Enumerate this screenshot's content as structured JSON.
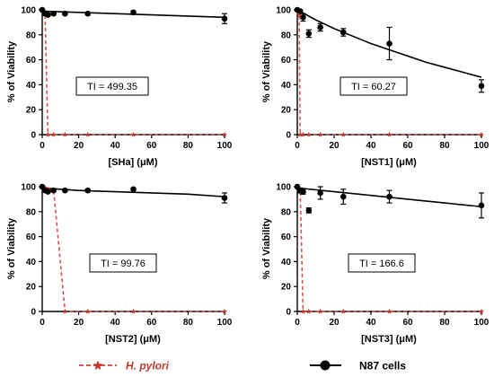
{
  "chart_data": [
    {
      "type": "line",
      "xlabel": "[SHa] (μM)",
      "ylabel": "% of Viability",
      "annotation": "TI = 499.35",
      "xlim": [
        0,
        100
      ],
      "ylim": [
        0,
        100
      ],
      "xticks": [
        0,
        20,
        40,
        60,
        80,
        100
      ],
      "yticks": [
        0,
        20,
        40,
        60,
        80,
        100
      ],
      "series": [
        {
          "name": "N87 cells",
          "points": [
            {
              "x": 0,
              "y": 100,
              "err": 0
            },
            {
              "x": 1.56,
              "y": 97,
              "err": 1
            },
            {
              "x": 3.13,
              "y": 96,
              "err": 1
            },
            {
              "x": 6.25,
              "y": 97,
              "err": 1
            },
            {
              "x": 12.5,
              "y": 97,
              "err": 1
            },
            {
              "x": 25,
              "y": 97,
              "err": 1
            },
            {
              "x": 50,
              "y": 98,
              "err": 1
            },
            {
              "x": 100,
              "y": 93,
              "err": 4
            }
          ],
          "fit": [
            [
              0,
              99
            ],
            [
              20,
              98
            ],
            [
              40,
              97
            ],
            [
              60,
              96
            ],
            [
              80,
              95
            ],
            [
              100,
              94
            ]
          ]
        },
        {
          "name": "H. pylori",
          "points": [
            {
              "x": 0,
              "y": 100
            },
            {
              "x": 0.5,
              "y": 99
            },
            {
              "x": 1,
              "y": 98
            },
            {
              "x": 1.56,
              "y": 97
            },
            {
              "x": 3.13,
              "y": 0
            },
            {
              "x": 6.25,
              "y": 0
            },
            {
              "x": 12.5,
              "y": 0
            },
            {
              "x": 25,
              "y": 0
            },
            {
              "x": 50,
              "y": 0
            },
            {
              "x": 100,
              "y": 0
            }
          ]
        }
      ]
    },
    {
      "type": "line",
      "xlabel": "[NST1] (μM)",
      "ylabel": "% of Viability",
      "annotation": "TI = 60.27",
      "xlim": [
        0,
        100
      ],
      "ylim": [
        0,
        100
      ],
      "xticks": [
        0,
        20,
        40,
        60,
        80,
        100
      ],
      "yticks": [
        0,
        20,
        40,
        60,
        80,
        100
      ],
      "series": [
        {
          "name": "N87 cells",
          "points": [
            {
              "x": 0,
              "y": 100,
              "err": 0
            },
            {
              "x": 1.56,
              "y": 99,
              "err": 1
            },
            {
              "x": 3.13,
              "y": 94,
              "err": 3
            },
            {
              "x": 6.25,
              "y": 81,
              "err": 3
            },
            {
              "x": 12.5,
              "y": 86,
              "err": 3
            },
            {
              "x": 25,
              "y": 82,
              "err": 3
            },
            {
              "x": 50,
              "y": 73,
              "err": 13
            },
            {
              "x": 100,
              "y": 39,
              "err": 5
            }
          ],
          "fit": [
            [
              0,
              100
            ],
            [
              10,
              92
            ],
            [
              20,
              85
            ],
            [
              30,
              79
            ],
            [
              40,
              73
            ],
            [
              50,
              68
            ],
            [
              60,
              63
            ],
            [
              70,
              58
            ],
            [
              80,
              54
            ],
            [
              90,
              50
            ],
            [
              100,
              46
            ]
          ]
        },
        {
          "name": "H. pylori",
          "points": [
            {
              "x": 0,
              "y": 100
            },
            {
              "x": 0.5,
              "y": 98
            },
            {
              "x": 1,
              "y": 96
            },
            {
              "x": 1.56,
              "y": 0
            },
            {
              "x": 3.13,
              "y": 0
            },
            {
              "x": 6.25,
              "y": 0
            },
            {
              "x": 12.5,
              "y": 0
            },
            {
              "x": 25,
              "y": 0
            },
            {
              "x": 50,
              "y": 0
            },
            {
              "x": 100,
              "y": 0
            }
          ]
        }
      ]
    },
    {
      "type": "line",
      "xlabel": "[NST2] (μM)",
      "ylabel": "% of Viability",
      "annotation": "TI = 99.76",
      "xlim": [
        0,
        100
      ],
      "ylim": [
        0,
        100
      ],
      "xticks": [
        0,
        20,
        40,
        60,
        80,
        100
      ],
      "yticks": [
        0,
        20,
        40,
        60,
        80,
        100
      ],
      "series": [
        {
          "name": "N87 cells",
          "points": [
            {
              "x": 0,
              "y": 100,
              "err": 0
            },
            {
              "x": 1.56,
              "y": 97,
              "err": 1
            },
            {
              "x": 3.13,
              "y": 96,
              "err": 1
            },
            {
              "x": 6.25,
              "y": 97,
              "err": 1
            },
            {
              "x": 12.5,
              "y": 97,
              "err": 1
            },
            {
              "x": 25,
              "y": 97,
              "err": 1
            },
            {
              "x": 50,
              "y": 98,
              "err": 1
            },
            {
              "x": 100,
              "y": 91,
              "err": 4
            }
          ],
          "fit": [
            [
              0,
              99
            ],
            [
              20,
              97
            ],
            [
              40,
              96
            ],
            [
              60,
              95
            ],
            [
              80,
              94
            ],
            [
              100,
              92
            ]
          ]
        },
        {
          "name": "H. pylori",
          "points": [
            {
              "x": 0,
              "y": 100
            },
            {
              "x": 1.56,
              "y": 99
            },
            {
              "x": 3.13,
              "y": 98
            },
            {
              "x": 6.25,
              "y": 97
            },
            {
              "x": 12.5,
              "y": 0
            },
            {
              "x": 25,
              "y": 0
            },
            {
              "x": 50,
              "y": 0
            },
            {
              "x": 100,
              "y": 0
            }
          ]
        }
      ]
    },
    {
      "type": "line",
      "xlabel": "[NST3] (μM)",
      "ylabel": "% of Viability",
      "annotation": "TI = 166.6",
      "xlim": [
        0,
        100
      ],
      "ylim": [
        0,
        100
      ],
      "xticks": [
        0,
        20,
        40,
        60,
        80,
        100
      ],
      "yticks": [
        0,
        20,
        40,
        60,
        80,
        100
      ],
      "series": [
        {
          "name": "N87 cells",
          "points": [
            {
              "x": 0,
              "y": 100,
              "err": 0
            },
            {
              "x": 1.56,
              "y": 97,
              "err": 2
            },
            {
              "x": 3.13,
              "y": 96,
              "err": 2
            },
            {
              "x": 6.25,
              "y": 81,
              "err": 2
            },
            {
              "x": 12.5,
              "y": 95,
              "err": 5
            },
            {
              "x": 25,
              "y": 92,
              "err": 6
            },
            {
              "x": 50,
              "y": 92,
              "err": 5
            },
            {
              "x": 100,
              "y": 85,
              "err": 10
            }
          ],
          "fit": [
            [
              0,
              99
            ],
            [
              20,
              96
            ],
            [
              40,
              93
            ],
            [
              60,
              90
            ],
            [
              80,
              87
            ],
            [
              100,
              84
            ]
          ]
        },
        {
          "name": "H. pylori",
          "points": [
            {
              "x": 0,
              "y": 100
            },
            {
              "x": 1,
              "y": 98
            },
            {
              "x": 1.56,
              "y": 97
            },
            {
              "x": 3.13,
              "y": 0
            },
            {
              "x": 6.25,
              "y": 0
            },
            {
              "x": 12.5,
              "y": 0
            },
            {
              "x": 25,
              "y": 0
            },
            {
              "x": 50,
              "y": 0
            },
            {
              "x": 100,
              "y": 0
            }
          ]
        }
      ]
    }
  ],
  "legend": {
    "hpylori_label": "H. pylori",
    "n87_label": "N87 cells"
  },
  "colors": {
    "n87": "#000000",
    "hpylori": "#c0392b",
    "hpylori_line": "#d9534f"
  }
}
